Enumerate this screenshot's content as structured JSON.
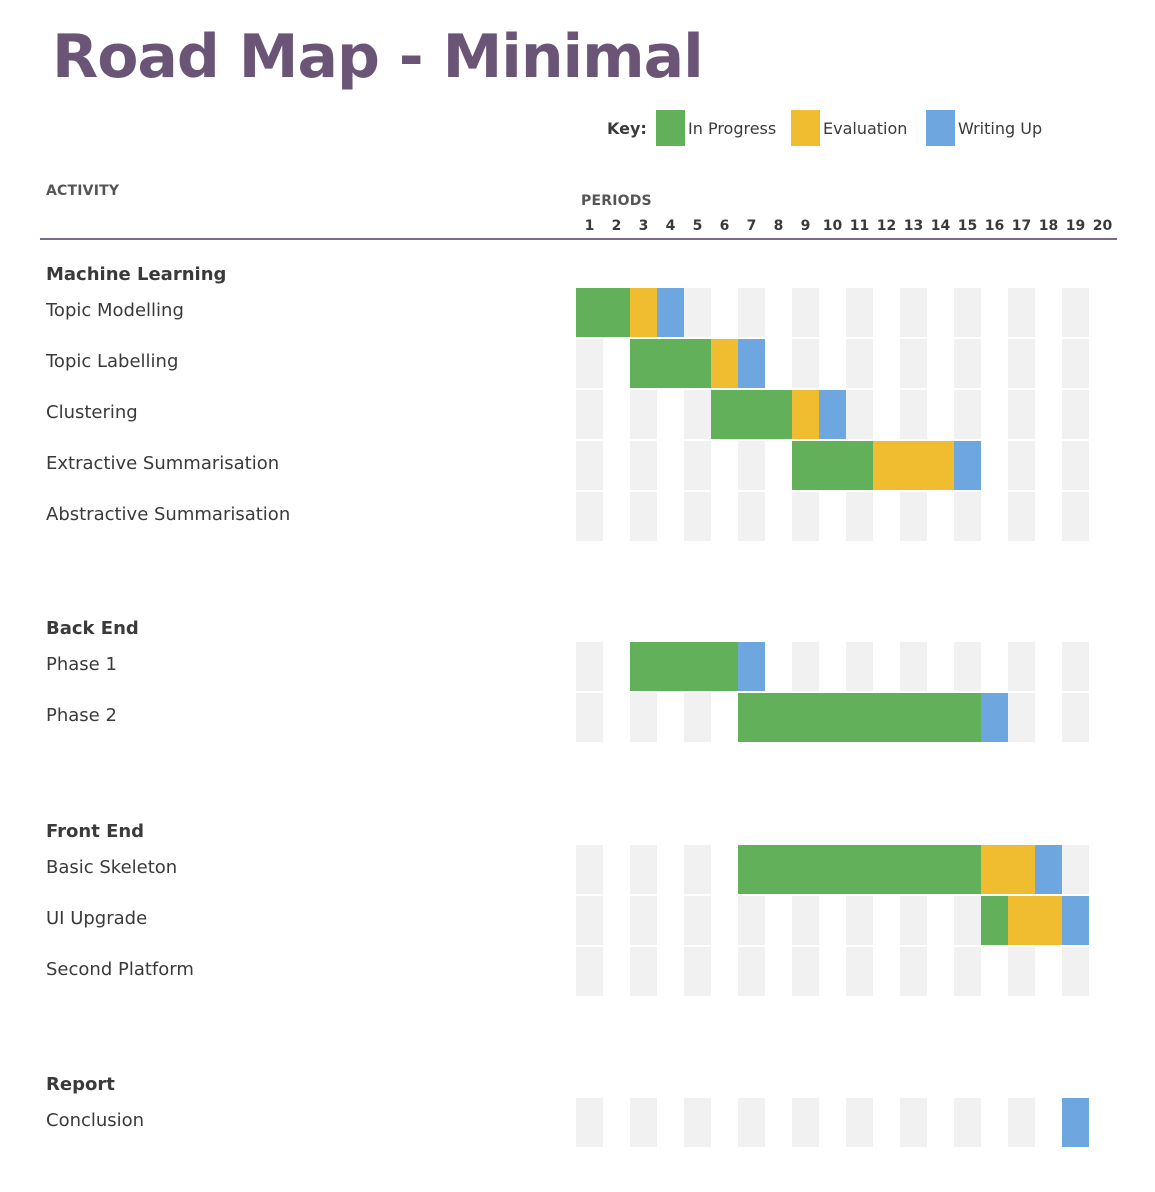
{
  "title": "Road Map - Minimal",
  "legend": {
    "key_label": "Key:",
    "items": [
      {
        "label": "In Progress",
        "color": "#62b15a"
      },
      {
        "label": "Evaluation",
        "color": "#f0bd30"
      },
      {
        "label": "Writing Up",
        "color": "#6ea7e0"
      }
    ]
  },
  "headers": {
    "activity": "ACTIVITY",
    "periods": "PERIODS"
  },
  "chart_data": {
    "type": "gantt",
    "periods": [
      1,
      2,
      3,
      4,
      5,
      6,
      7,
      8,
      9,
      10,
      11,
      12,
      13,
      14,
      15,
      16,
      17,
      18,
      19,
      20
    ],
    "shaded_periods": [
      1,
      3,
      5,
      7,
      9,
      11,
      13,
      15,
      17,
      19
    ],
    "status_colors": {
      "in_progress": "#62b15a",
      "evaluation": "#f0bd30",
      "writing_up": "#6ea7e0"
    },
    "sections": [
      {
        "name": "Machine Learning",
        "tasks": [
          {
            "name": "Topic Modelling",
            "segments": [
              {
                "status": "in_progress",
                "start": 1,
                "end": 2
              },
              {
                "status": "evaluation",
                "start": 3,
                "end": 3
              },
              {
                "status": "writing_up",
                "start": 4,
                "end": 4
              }
            ]
          },
          {
            "name": "Topic Labelling",
            "segments": [
              {
                "status": "in_progress",
                "start": 3,
                "end": 5
              },
              {
                "status": "evaluation",
                "start": 6,
                "end": 6
              },
              {
                "status": "writing_up",
                "start": 7,
                "end": 7
              }
            ]
          },
          {
            "name": "Clustering",
            "segments": [
              {
                "status": "in_progress",
                "start": 6,
                "end": 8
              },
              {
                "status": "evaluation",
                "start": 9,
                "end": 9
              },
              {
                "status": "writing_up",
                "start": 10,
                "end": 10
              }
            ]
          },
          {
            "name": "Extractive Summarisation",
            "segments": [
              {
                "status": "in_progress",
                "start": 9,
                "end": 11
              },
              {
                "status": "evaluation",
                "start": 12,
                "end": 14
              },
              {
                "status": "writing_up",
                "start": 15,
                "end": 15
              }
            ]
          },
          {
            "name": "Abstractive Summarisation",
            "segments": []
          }
        ]
      },
      {
        "name": "Back End",
        "tasks": [
          {
            "name": "Phase 1",
            "segments": [
              {
                "status": "in_progress",
                "start": 3,
                "end": 6
              },
              {
                "status": "writing_up",
                "start": 7,
                "end": 7
              }
            ]
          },
          {
            "name": "Phase 2",
            "segments": [
              {
                "status": "in_progress",
                "start": 7,
                "end": 15
              },
              {
                "status": "writing_up",
                "start": 16,
                "end": 16
              }
            ]
          }
        ]
      },
      {
        "name": "Front End",
        "tasks": [
          {
            "name": "Basic Skeleton",
            "segments": [
              {
                "status": "in_progress",
                "start": 7,
                "end": 15
              },
              {
                "status": "evaluation",
                "start": 16,
                "end": 17
              },
              {
                "status": "writing_up",
                "start": 18,
                "end": 18
              }
            ]
          },
          {
            "name": "UI Upgrade",
            "segments": [
              {
                "status": "in_progress",
                "start": 16,
                "end": 16
              },
              {
                "status": "evaluation",
                "start": 17,
                "end": 18
              },
              {
                "status": "writing_up",
                "start": 19,
                "end": 19
              }
            ]
          },
          {
            "name": "Second Platform",
            "segments": []
          }
        ]
      },
      {
        "name": "Report",
        "tasks": [
          {
            "name": "Conclusion",
            "segments": [
              {
                "status": "writing_up",
                "start": 19,
                "end": 19
              }
            ]
          }
        ]
      }
    ]
  }
}
